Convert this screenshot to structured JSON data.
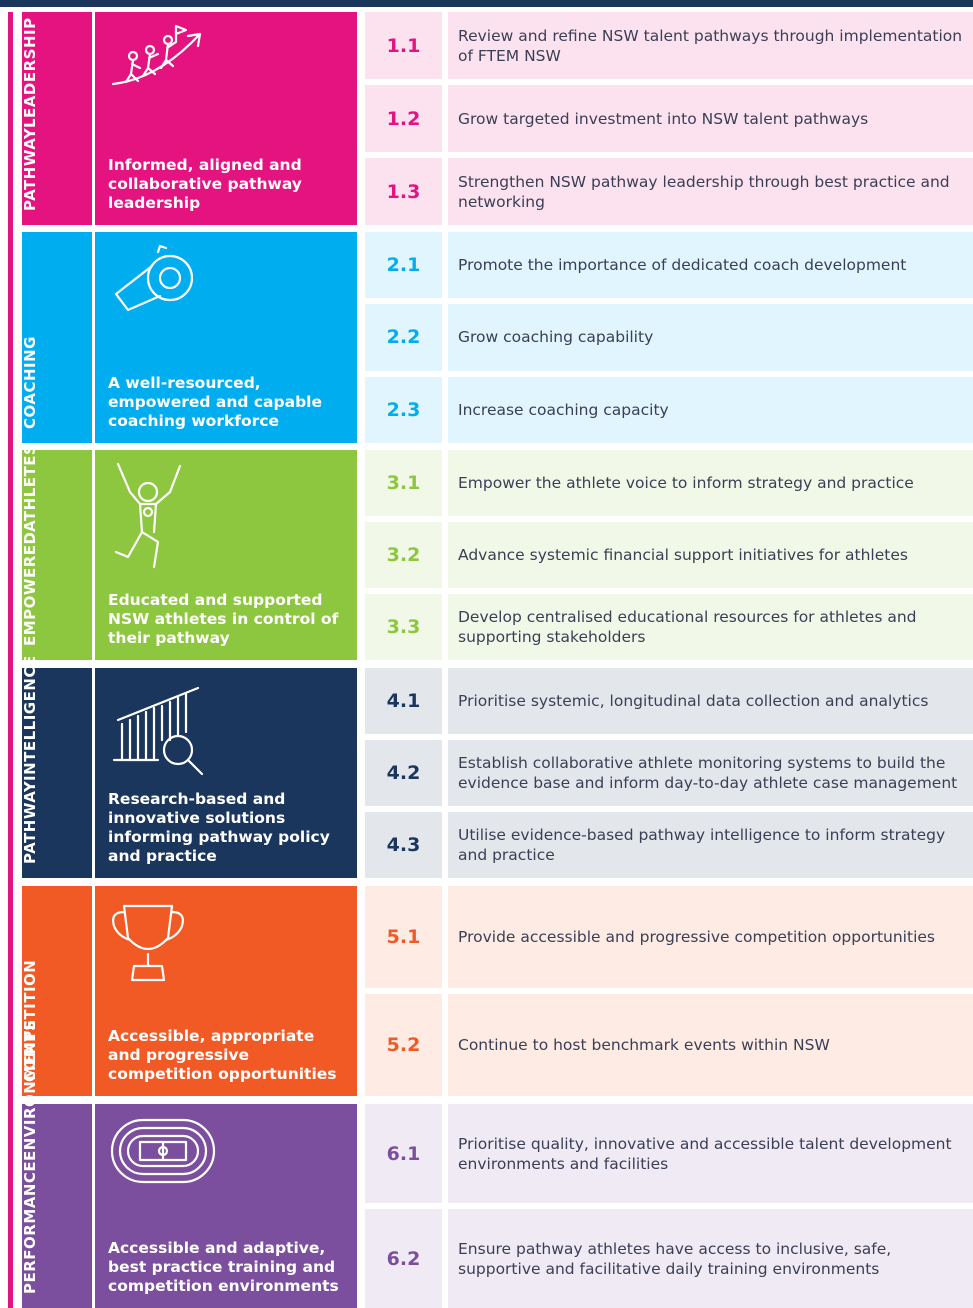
{
  "sections": [
    {
      "label": [
        "PATHWAY",
        "LEADERSHIP"
      ],
      "summary": "Informed, aligned and collaborative pathway leadership",
      "color": "#e5137f",
      "items": [
        {
          "number": "1.1",
          "text": "Review and refine NSW talent pathways through implementation of FTEM NSW"
        },
        {
          "number": "1.2",
          "text": "Grow targeted investment into NSW talent pathways"
        },
        {
          "number": "1.3",
          "text": "Strengthen NSW pathway leadership through best practice and networking"
        }
      ]
    },
    {
      "label": [
        "COACHING"
      ],
      "summary": "A well-resourced, empowered and capable coaching workforce",
      "color": "#00aeef",
      "items": [
        {
          "number": "2.1",
          "text": "Promote the importance of dedicated coach development"
        },
        {
          "number": "2.2",
          "text": "Grow coaching capability"
        },
        {
          "number": "2.3",
          "text": "Increase coaching capacity"
        }
      ]
    },
    {
      "label": [
        "EMPOWERED",
        "ATHLETES"
      ],
      "summary": "Educated and supported NSW athletes in control of their pathway",
      "color": "#8dc63f",
      "items": [
        {
          "number": "3.1",
          "text": "Empower the athlete voice to inform strategy and practice"
        },
        {
          "number": "3.2",
          "text": "Advance systemic financial support initiatives for athletes"
        },
        {
          "number": "3.3",
          "text": "Develop centralised educational resources for athletes and supporting stakeholders"
        }
      ]
    },
    {
      "label": [
        "PATHWAY",
        "INTELLIGENCE"
      ],
      "summary": "Research-based and innovative solutions informing pathway policy and practice",
      "color": "#1b365d",
      "items": [
        {
          "number": "4.1",
          "text": "Prioritise systemic, longitudinal data collection and analytics"
        },
        {
          "number": "4.2",
          "text": "Establish collaborative athlete monitoring systems to build the evidence base and inform day-to-day athlete case management"
        },
        {
          "number": "4.3",
          "text": "Utilise evidence-based pathway intelligence to inform strategy and practice"
        }
      ]
    },
    {
      "label": [
        "COMPETITION"
      ],
      "summary": "Accessible, appropriate and progressive competition opportunities",
      "color": "#f15a24",
      "items": [
        {
          "number": "5.1",
          "text": "Provide accessible and progressive competition opportunities"
        },
        {
          "number": "5.2",
          "text": "Continue to host benchmark events within NSW"
        }
      ]
    },
    {
      "label": [
        "PERFORMANCE",
        "ENVIRONMENTS"
      ],
      "summary": "Accessible and adaptive, best practice training and competition environments",
      "color": "#7b4f9d",
      "items": [
        {
          "number": "6.1",
          "text": "Prioritise quality, innovative and accessible talent development environments and facilities"
        },
        {
          "number": "6.2",
          "text": "Ensure pathway athletes have access to inclusive, safe, supportive and facilitative daily training environments"
        }
      ]
    }
  ]
}
